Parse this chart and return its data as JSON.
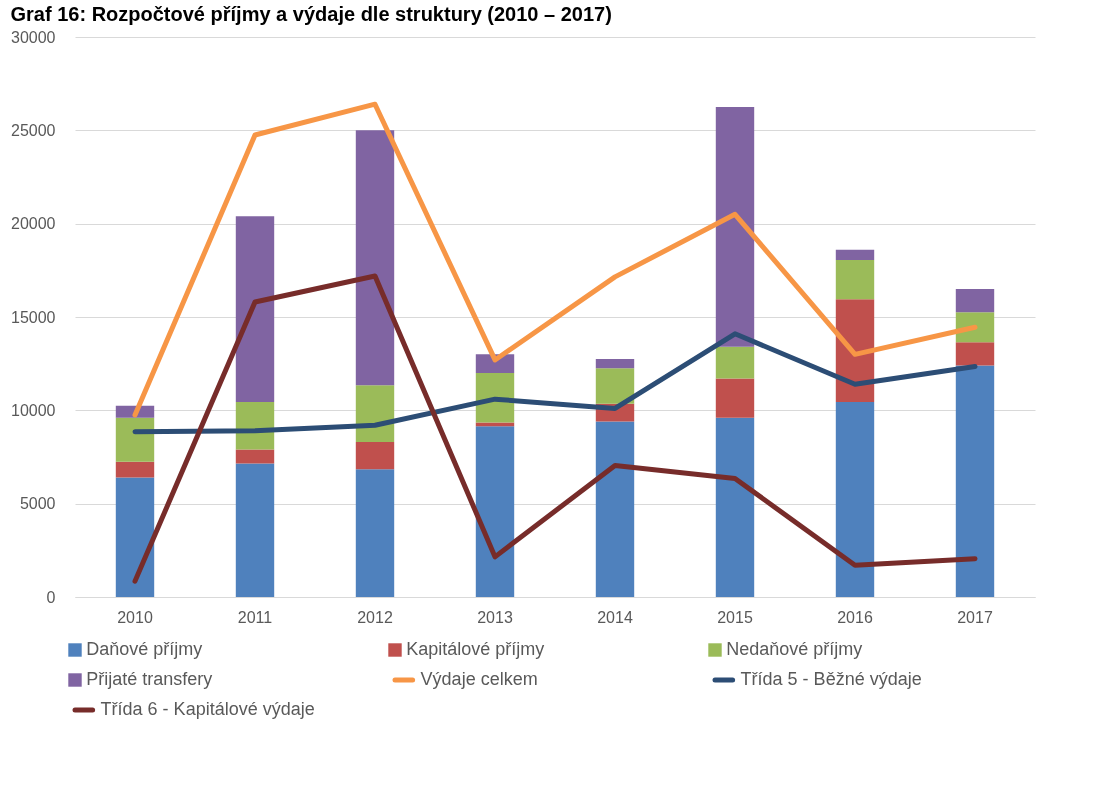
{
  "chart_data": {
    "type": "bar",
    "stacked": true,
    "title": "Graf 16: Rozpočtové příjmy a výdaje dle struktury (2010 – 2017)",
    "categories": [
      "2010",
      "2011",
      "2012",
      "2013",
      "2014",
      "2015",
      "2016",
      "2017"
    ],
    "series": [
      {
        "name": "Daňové příjmy",
        "color": "#4f81bd",
        "values": [
          6400,
          7150,
          6850,
          9150,
          9400,
          9600,
          10450,
          12400
        ]
      },
      {
        "name": "Kapitálové příjmy",
        "color": "#c0504d",
        "values": [
          850,
          750,
          1450,
          200,
          950,
          2100,
          5500,
          1250
        ]
      },
      {
        "name": "Nedaňové příjmy",
        "color": "#9bbb59",
        "values": [
          2350,
          2550,
          3050,
          2650,
          1900,
          1700,
          2100,
          1600
        ]
      },
      {
        "name": "Přijaté transfery",
        "color": "#8064a2",
        "values": [
          650,
          9950,
          13650,
          1000,
          500,
          12850,
          550,
          1250
        ]
      },
      {
        "name": "Výdaje celkem",
        "type": "line",
        "color": "#f79646",
        "values": [
          9750,
          24750,
          26400,
          12700,
          17150,
          20500,
          13000,
          14450
        ]
      },
      {
        "name": "Třída 5 - Běžné výdaje",
        "type": "line",
        "color": "#2c4d75",
        "values": [
          8850,
          8900,
          9200,
          10600,
          10100,
          14100,
          11400,
          12350
        ]
      },
      {
        "name": "Třída 6 - Kapitálové výdaje",
        "type": "line",
        "color": "#772c2a",
        "values": [
          850,
          15800,
          17200,
          2150,
          7050,
          6350,
          1700,
          2050
        ]
      }
    ],
    "ylim": [
      0,
      30000
    ],
    "yticks": [
      0,
      5000,
      10000,
      15000,
      20000,
      25000,
      30000
    ],
    "grid": "y",
    "legend": "bottom",
    "marker": "none",
    "line_style": "solid"
  }
}
